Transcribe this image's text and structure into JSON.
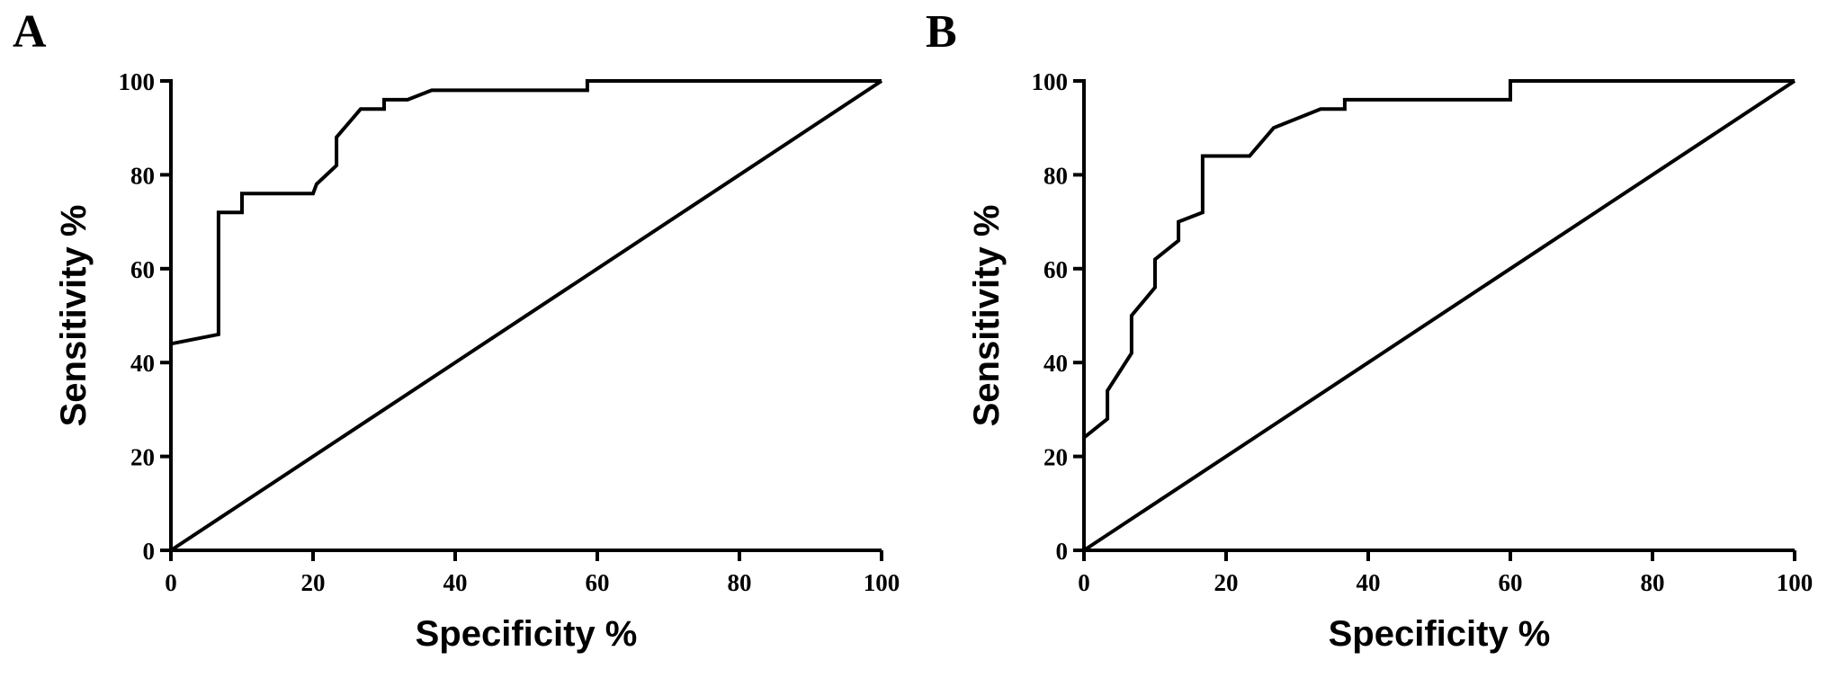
{
  "chart_data": [
    {
      "type": "line",
      "panel_label": "A",
      "xlabel": "Specificity %",
      "ylabel": "Sensitivity %",
      "xlim": [
        0,
        100
      ],
      "ylim": [
        0,
        100
      ],
      "xticks": [
        0,
        20,
        40,
        60,
        80,
        100
      ],
      "yticks": [
        0,
        20,
        40,
        60,
        80,
        100
      ],
      "grid": false,
      "series": [
        {
          "x": [
            0,
            6.7,
            6.7,
            10,
            10,
            20,
            20.5,
            23.3,
            23.3,
            26.7,
            30,
            30,
            33.3,
            36.7,
            40,
            58.6,
            58.6,
            100
          ],
          "y": [
            44,
            46,
            72,
            72,
            76,
            76,
            78,
            82,
            88,
            94,
            94,
            96,
            96,
            98,
            98,
            98,
            100,
            100
          ]
        },
        {
          "x": [
            0,
            100
          ],
          "y": [
            0,
            100
          ]
        }
      ]
    },
    {
      "type": "line",
      "panel_label": "B",
      "xlabel": "Specificity %",
      "ylabel": "Sensitivity %",
      "xlim": [
        0,
        100
      ],
      "ylim": [
        0,
        100
      ],
      "xticks": [
        0,
        20,
        40,
        60,
        80,
        100
      ],
      "yticks": [
        0,
        20,
        40,
        60,
        80,
        100
      ],
      "grid": false,
      "series": [
        {
          "x": [
            0,
            3.3,
            3.3,
            6.7,
            6.7,
            10,
            10,
            13.3,
            13.3,
            16.7,
            16.7,
            23.3,
            26.7,
            33.3,
            36.7,
            36.7,
            60,
            60,
            100
          ],
          "y": [
            24,
            28,
            34,
            42,
            50,
            56,
            62,
            66,
            70,
            72,
            84,
            84,
            90,
            94,
            94,
            96,
            96,
            100,
            100
          ]
        },
        {
          "x": [
            0,
            100
          ],
          "y": [
            0,
            100
          ]
        }
      ]
    }
  ]
}
